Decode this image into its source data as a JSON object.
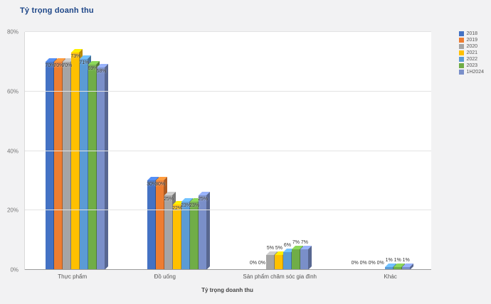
{
  "chart_data": {
    "type": "bar",
    "title": "Tỷ trọng doanh thu",
    "xlabel": "Tỷ trọng doanh thu",
    "ylim": [
      0,
      80
    ],
    "yticks": [
      {
        "value": 0,
        "label": "0%"
      },
      {
        "value": 20,
        "label": "20%"
      },
      {
        "value": 40,
        "label": "40%"
      },
      {
        "value": 60,
        "label": "60%"
      },
      {
        "value": 80,
        "label": "80%"
      }
    ],
    "value_suffix": "%",
    "grid": true,
    "legend_position": "right",
    "effect": "3d",
    "categories": [
      "Thực phẩm",
      "Đồ uống",
      "Sản phẩm chăm sóc gia đình",
      "Khác"
    ],
    "series": [
      {
        "name": "2018",
        "color": "#4472C4",
        "values": [
          70,
          30,
          0,
          0
        ]
      },
      {
        "name": "2019",
        "color": "#ED7D31",
        "values": [
          70,
          30,
          0,
          0
        ]
      },
      {
        "name": "2020",
        "color": "#A5A5A5",
        "values": [
          70,
          25,
          5,
          0
        ]
      },
      {
        "name": "2021",
        "color": "#FFC000",
        "values": [
          73,
          22,
          5,
          0
        ]
      },
      {
        "name": "2022",
        "color": "#5B9BD5",
        "values": [
          71,
          23,
          6,
          1
        ]
      },
      {
        "name": "2023",
        "color": "#70AD47",
        "values": [
          69,
          23,
          7,
          1
        ]
      },
      {
        "name": "1H2024",
        "color": "#7A8FC9",
        "values": [
          68,
          25,
          7,
          1
        ]
      }
    ],
    "colors": {
      "background": "#f2f2f3",
      "plot_background": "#ffffff",
      "title": "#1c4587",
      "axis_text": "#757575",
      "gridline": "#e3e3e3",
      "baseline": "#9a9a9a",
      "data_label": "#333333"
    }
  }
}
